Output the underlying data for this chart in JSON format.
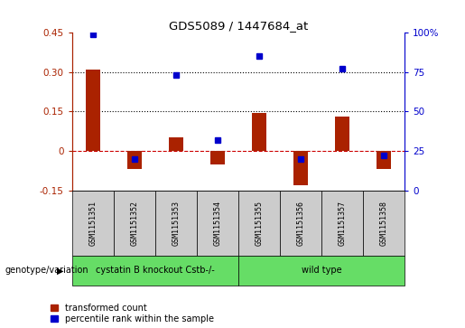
{
  "title": "GDS5089 / 1447684_at",
  "samples": [
    "GSM1151351",
    "GSM1151352",
    "GSM1151353",
    "GSM1151354",
    "GSM1151355",
    "GSM1151356",
    "GSM1151357",
    "GSM1151358"
  ],
  "transformed_count": [
    0.31,
    -0.07,
    0.05,
    -0.05,
    0.145,
    -0.13,
    0.13,
    -0.07
  ],
  "percentile_rank": [
    99,
    20,
    73,
    32,
    85,
    20,
    77,
    22
  ],
  "group1_label": "cystatin B knockout Cstb-/-",
  "group2_label": "wild type",
  "factor_label": "genotype/variation",
  "group_color": "#66dd66",
  "bar_color": "#aa2200",
  "dot_color": "#0000cc",
  "zero_line_color": "#cc0000",
  "grid_line_color": "#000000",
  "ylim_left": [
    -0.15,
    0.45
  ],
  "ylim_right": [
    0,
    100
  ],
  "yticks_left": [
    -0.15,
    0.0,
    0.15,
    0.3,
    0.45
  ],
  "yticks_right": [
    0,
    25,
    50,
    75,
    100
  ],
  "ytick_labels_left": [
    "-0.15",
    "0",
    "0.15",
    "0.30",
    "0.45"
  ],
  "ytick_labels_right": [
    "0",
    "25",
    "50",
    "75",
    "100%"
  ],
  "hlines": [
    0.3,
    0.15
  ],
  "bar_width": 0.35,
  "legend_red_label": "transformed count",
  "legend_blue_label": "percentile rank within the sample",
  "box_color": "#cccccc"
}
